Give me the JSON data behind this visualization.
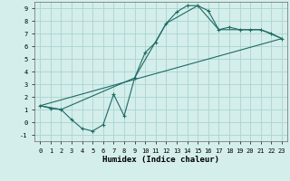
{
  "xlabel": "Humidex (Indice chaleur)",
  "bg_color": "#d4eeeb",
  "grid_color": "#aad4d0",
  "line_color": "#1e6b65",
  "xlim": [
    -0.5,
    23.5
  ],
  "ylim": [
    -1.5,
    9.5
  ],
  "xticks": [
    0,
    1,
    2,
    3,
    4,
    5,
    6,
    7,
    8,
    9,
    10,
    11,
    12,
    13,
    14,
    15,
    16,
    17,
    18,
    19,
    20,
    21,
    22,
    23
  ],
  "yticks": [
    -1,
    0,
    1,
    2,
    3,
    4,
    5,
    6,
    7,
    8,
    9
  ],
  "line1_x": [
    0,
    1,
    2,
    3,
    4,
    5,
    6,
    7,
    8,
    9,
    10,
    11,
    12,
    13,
    14,
    15,
    16,
    17,
    18,
    19,
    20,
    21,
    22,
    23
  ],
  "line1_y": [
    1.3,
    1.1,
    1.0,
    0.2,
    -0.5,
    -0.7,
    -0.2,
    2.2,
    0.5,
    3.5,
    5.5,
    6.3,
    7.8,
    8.7,
    9.2,
    9.2,
    8.8,
    7.3,
    7.5,
    7.3,
    7.3,
    7.3,
    7.0,
    6.6
  ],
  "line2_x": [
    0,
    2,
    9,
    12,
    15,
    17,
    19,
    21,
    23
  ],
  "line2_y": [
    1.3,
    1.0,
    3.5,
    7.8,
    9.2,
    7.3,
    7.3,
    7.3,
    6.6
  ],
  "line3_x": [
    0,
    23
  ],
  "line3_y": [
    1.3,
    6.6
  ]
}
